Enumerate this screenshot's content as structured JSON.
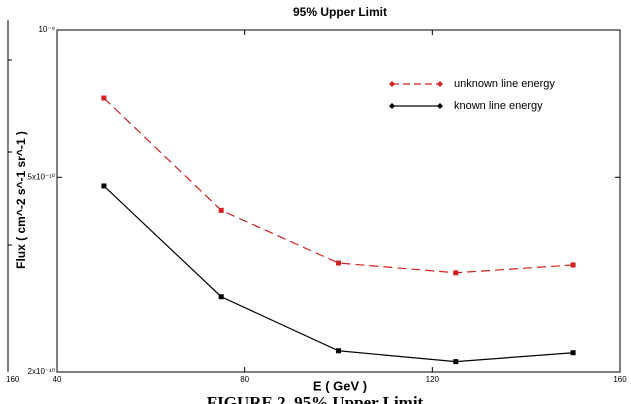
{
  "chart_data": {
    "type": "line",
    "title": "95% Upper Limit",
    "x_label": "E ( GeV )",
    "y_label": "Flux ( cm^-2 s^-1 sr^-1 )",
    "caption": "FIGURE 2. 95% Upper Limit",
    "x": [
      50,
      75,
      100,
      125,
      150
    ],
    "series": [
      {
        "name": "unknown line energy",
        "color": "#d42020",
        "dashed": true,
        "values": [
          7.26e-10,
          4.28e-10,
          3.34e-10,
          3.19e-10,
          3.31e-10
        ]
      },
      {
        "name": "known line energy",
        "color": "#000000",
        "dashed": false,
        "values": [
          4.8e-10,
          2.85e-10,
          2.21e-10,
          2.1e-10,
          2.19e-10
        ]
      }
    ],
    "xlim": [
      40,
      160
    ],
    "xticks": [
      40,
      80,
      120,
      160
    ],
    "ylim": [
      2e-10,
      1e-09
    ],
    "log_y": true,
    "yticks": [
      {
        "value": 2e-10,
        "label": "2x10⁻¹⁰"
      },
      {
        "value": 5e-10,
        "label": "5x10⁻¹⁰"
      },
      {
        "value": 1e-09,
        "label": "10⁻⁹"
      }
    ],
    "legend": "upper right",
    "left_fragment_tick": "160"
  }
}
